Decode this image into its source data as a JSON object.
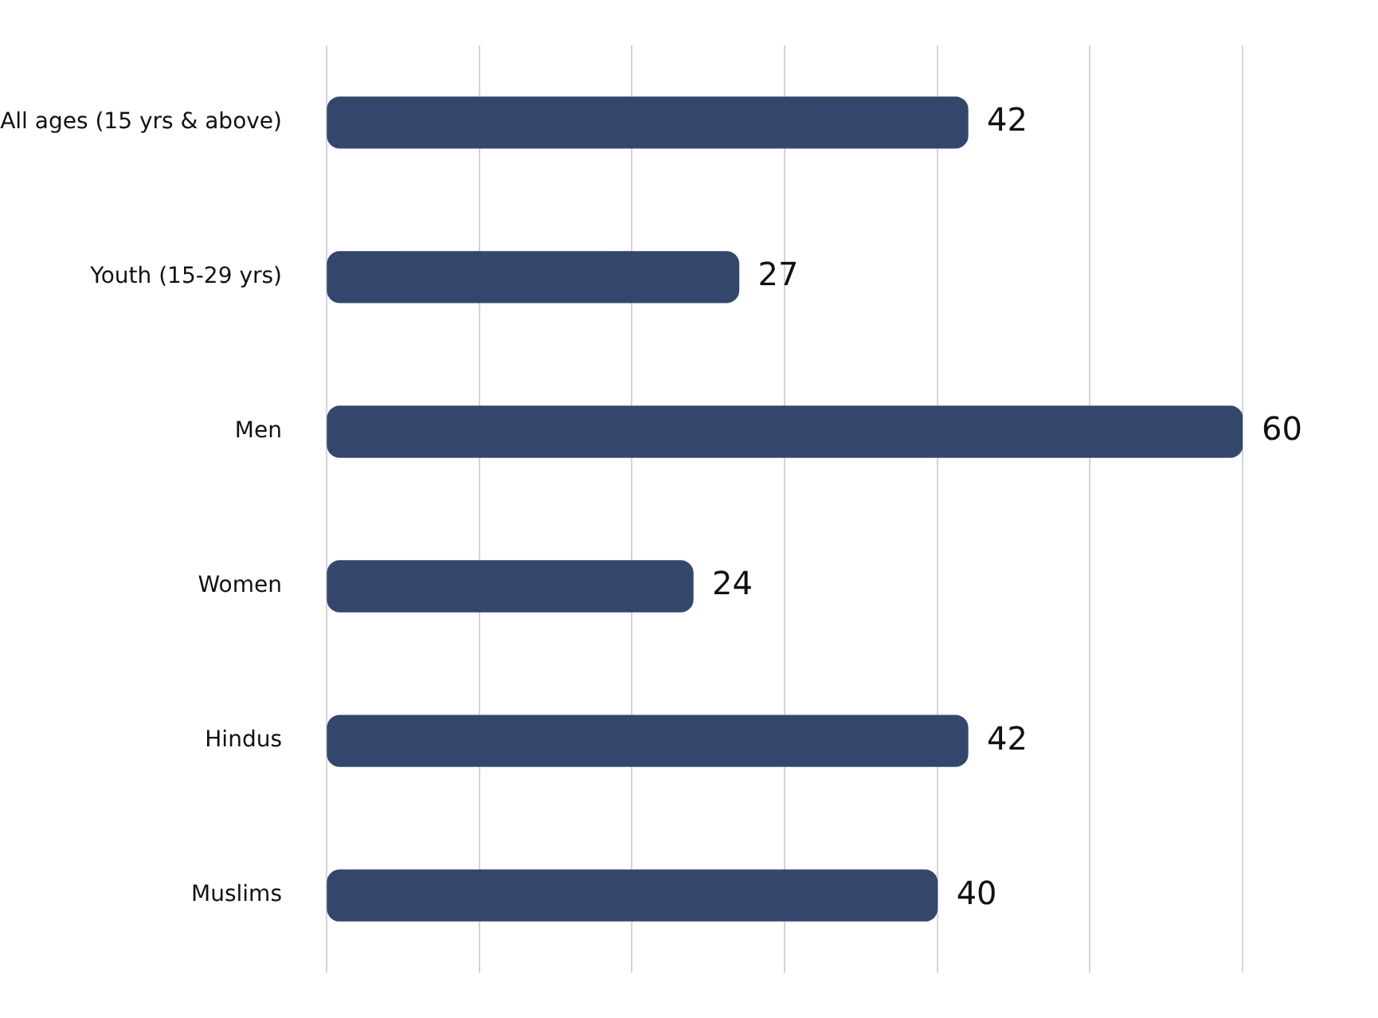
{
  "chart_data": {
    "type": "bar",
    "orientation": "horizontal",
    "categories": [
      "All ages (15 yrs & above)",
      "Youth (15-29 yrs)",
      "Men",
      "Women",
      "Hindus",
      "Muslims"
    ],
    "values": [
      42,
      27,
      60,
      24,
      42,
      40
    ],
    "color": "#34466b",
    "xlim": [
      0,
      60
    ],
    "xticks": [
      {
        "value": 0,
        "label": null
      },
      {
        "value": 10,
        "label": null
      },
      {
        "value": 20,
        "label": null
      },
      {
        "value": 30,
        "label": null
      },
      {
        "value": 40,
        "label": null
      },
      {
        "value": 50,
        "label": null
      },
      {
        "value": 60,
        "label": null
      }
    ],
    "grid": "x",
    "tick_labels": "y",
    "data_labels": true,
    "legend": false
  }
}
